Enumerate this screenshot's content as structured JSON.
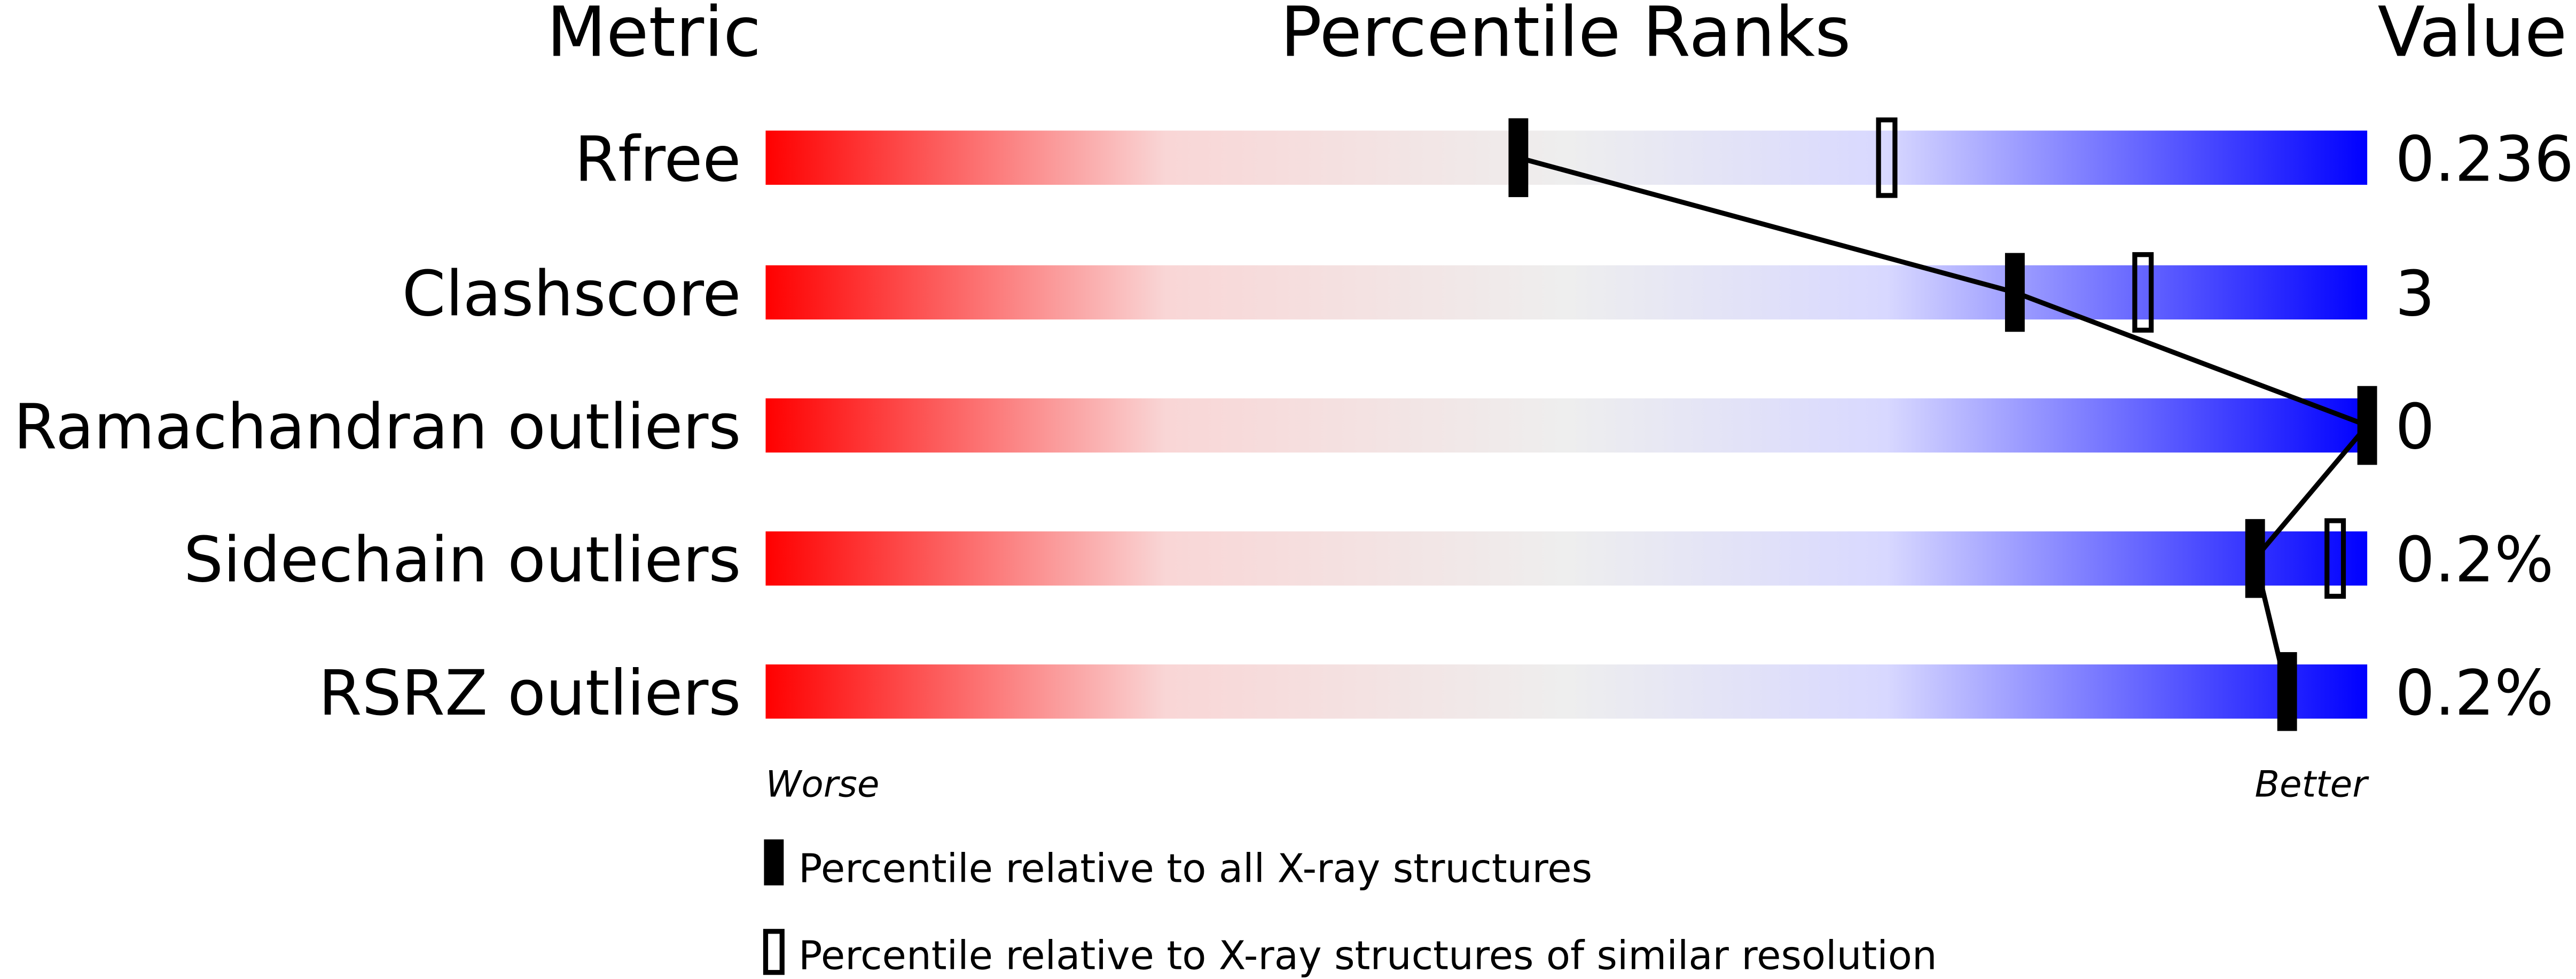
{
  "chart_data": {
    "type": "bar",
    "headers": {
      "metric": "Metric",
      "ranks": "Percentile Ranks",
      "value": "Value"
    },
    "xlim": [
      0,
      100
    ],
    "colors": {
      "worse": "#ff0000",
      "middle": "#eeeeee",
      "light_blue": "#d8d8ff",
      "better": "#0000ff",
      "marker": "#000000"
    },
    "rows": [
      {
        "metric": "Rfree",
        "value": "0.236",
        "percentile_all": 47,
        "percentile_similar": 70
      },
      {
        "metric": "Clashscore",
        "value": "3",
        "percentile_all": 78,
        "percentile_similar": 86
      },
      {
        "metric": "Ramachandran outliers",
        "value": "0",
        "percentile_all": 100,
        "percentile_similar": null
      },
      {
        "metric": "Sidechain outliers",
        "value": "0.2%",
        "percentile_all": 93,
        "percentile_similar": 98
      },
      {
        "metric": "RSRZ outliers",
        "value": "0.2%",
        "percentile_all": 95,
        "percentile_similar": null
      }
    ],
    "axis_labels": {
      "left": "Worse",
      "right": "Better"
    },
    "legend": [
      {
        "marker": "filled",
        "label": "Percentile relative to all X-ray structures"
      },
      {
        "marker": "hollow",
        "label": "Percentile relative to X-ray structures of similar resolution"
      }
    ]
  }
}
